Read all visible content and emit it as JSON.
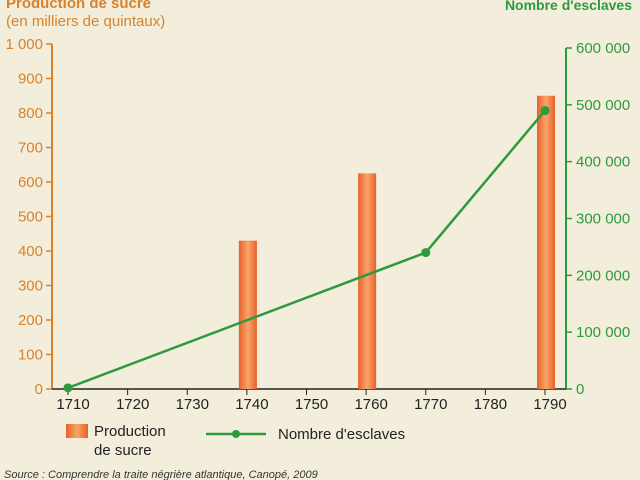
{
  "chart_data": {
    "type": "bar",
    "left_axis_title": "Production de sucre",
    "left_axis_unit": "(en milliers de quintaux)",
    "right_axis_title": "Nombre d'esclaves",
    "x_ticks": [
      "1710",
      "1720",
      "1730",
      "1740",
      "1750",
      "1760",
      "1770",
      "1780",
      "1790"
    ],
    "left_ticks": [
      "0",
      "100",
      "200",
      "300",
      "400",
      "500",
      "600",
      "700",
      "800",
      "900",
      "1 000"
    ],
    "right_ticks": [
      "0",
      "100 000",
      "200 000",
      "300 000",
      "400 000",
      "500 000",
      "600 000"
    ],
    "ylim_left": [
      0,
      1000
    ],
    "ylim_right": [
      0,
      600000
    ],
    "xlim": [
      1710,
      1790
    ],
    "series": [
      {
        "name": "Production de sucre",
        "kind": "bar",
        "axis": "left",
        "x": [
          1740,
          1760,
          1790
        ],
        "values": [
          430,
          625,
          850
        ]
      },
      {
        "name": "Nombre d'esclaves",
        "kind": "line",
        "axis": "right",
        "x": [
          1710,
          1770,
          1790
        ],
        "values": [
          2000,
          240000,
          490000
        ]
      }
    ],
    "legend": {
      "bar_label_line1": "Production",
      "bar_label_line2": "de sucre",
      "line_label": "Nombre d'esclaves",
      "position": "bottom"
    },
    "colors": {
      "bar": "#f07a2c",
      "bar_light": "#f6b27a",
      "line": "#2e9a3e",
      "left_axis": "#d9822b",
      "right_axis": "#2e9a3e"
    },
    "source": "Source : Comprendre la traite négrière atlantique, Canopé, 2009"
  }
}
